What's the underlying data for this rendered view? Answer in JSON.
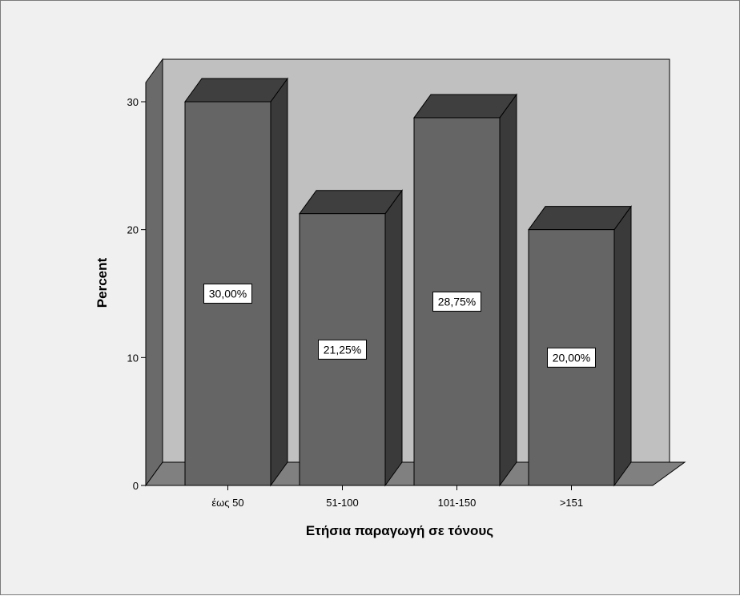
{
  "colors": {
    "background": "#f0f0f0",
    "plot_back_wall": "#c0c0c0",
    "plot_side_wall": "#6a6a6a",
    "floor": "#808080",
    "bar_front": "#656565",
    "bar_top": "#3f3f3f",
    "bar_side": "#3a3a3a",
    "label_box": "#ffffff"
  },
  "chart_data": {
    "type": "bar",
    "variant": "3d",
    "categories": [
      "έως 50",
      "51-100",
      "101-150",
      ">151"
    ],
    "values": [
      30.0,
      21.25,
      28.75,
      20.0
    ],
    "data_labels": [
      "30,00%",
      "21,25%",
      "28,75%",
      "20,00%"
    ],
    "xlabel": "Ετήσια παραγωγή σε τόνους",
    "ylabel": "Percent",
    "ylim": [
      0,
      30
    ],
    "yticks": [
      0,
      10,
      20,
      30
    ],
    "ytick_labels": [
      "0",
      "10",
      "20",
      "30"
    ],
    "grid": false,
    "legend": "none"
  }
}
